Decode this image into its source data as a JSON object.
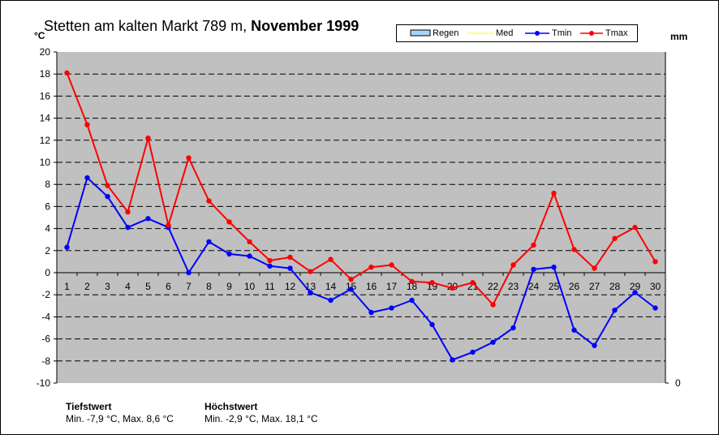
{
  "title_main": "Stetten am kalten Markt 789 m,",
  "title_period": "November 1999",
  "unit_left": "°C",
  "unit_right": "mm",
  "legend": [
    {
      "name": "Regen",
      "color": "#a9d3f5",
      "type": "bar"
    },
    {
      "name": "Med",
      "color": "#ffff00",
      "type": "line"
    },
    {
      "name": "Tmin",
      "color": "#0000ff",
      "type": "line"
    },
    {
      "name": "Tmax",
      "color": "#ff0000",
      "type": "line"
    }
  ],
  "stats": {
    "min_heading": "Tiefstwert",
    "min_text": "Min. -7,9 °C, Max. 8,6 °C",
    "max_heading": "Höchstwert",
    "max_text": "Min. -2,9 °C, Max. 18,1 °C"
  },
  "chart_data": {
    "type": "line",
    "title": "Stetten am kalten Markt 789 m, November 1999",
    "ylabel": "°C",
    "y2label": "mm",
    "ylim": [
      -10,
      20
    ],
    "yticks": [
      -10,
      -8,
      -6,
      -4,
      -2,
      0,
      2,
      4,
      6,
      8,
      10,
      12,
      14,
      16,
      18,
      20
    ],
    "y2ticks": [
      0
    ],
    "grid": true,
    "legend_position": "top-right",
    "x": [
      1,
      2,
      3,
      4,
      5,
      6,
      7,
      8,
      9,
      10,
      11,
      12,
      13,
      14,
      15,
      16,
      17,
      18,
      19,
      20,
      21,
      22,
      23,
      24,
      25,
      26,
      27,
      28,
      29,
      30
    ],
    "series": [
      {
        "name": "Tmin",
        "color": "#0000ff",
        "values": [
          2.3,
          8.6,
          6.9,
          4.1,
          4.9,
          4.1,
          0.0,
          2.8,
          1.7,
          1.5,
          0.6,
          0.4,
          -1.8,
          -2.5,
          -1.5,
          -3.6,
          -3.2,
          -2.5,
          -4.7,
          -7.9,
          -7.2,
          -6.3,
          -5.0,
          0.3,
          0.5,
          -5.2,
          -6.6,
          -3.4,
          -1.8,
          -3.2
        ]
      },
      {
        "name": "Tmax",
        "color": "#ff0000",
        "values": [
          18.1,
          13.4,
          7.9,
          5.5,
          12.2,
          4.3,
          10.4,
          6.5,
          4.6,
          2.8,
          1.1,
          1.4,
          0.1,
          1.2,
          -0.6,
          0.5,
          0.7,
          -0.8,
          -0.9,
          -1.4,
          -0.9,
          -2.9,
          0.7,
          2.5,
          7.2,
          2.1,
          0.4,
          3.1,
          4.1,
          1.0
        ]
      }
    ]
  }
}
